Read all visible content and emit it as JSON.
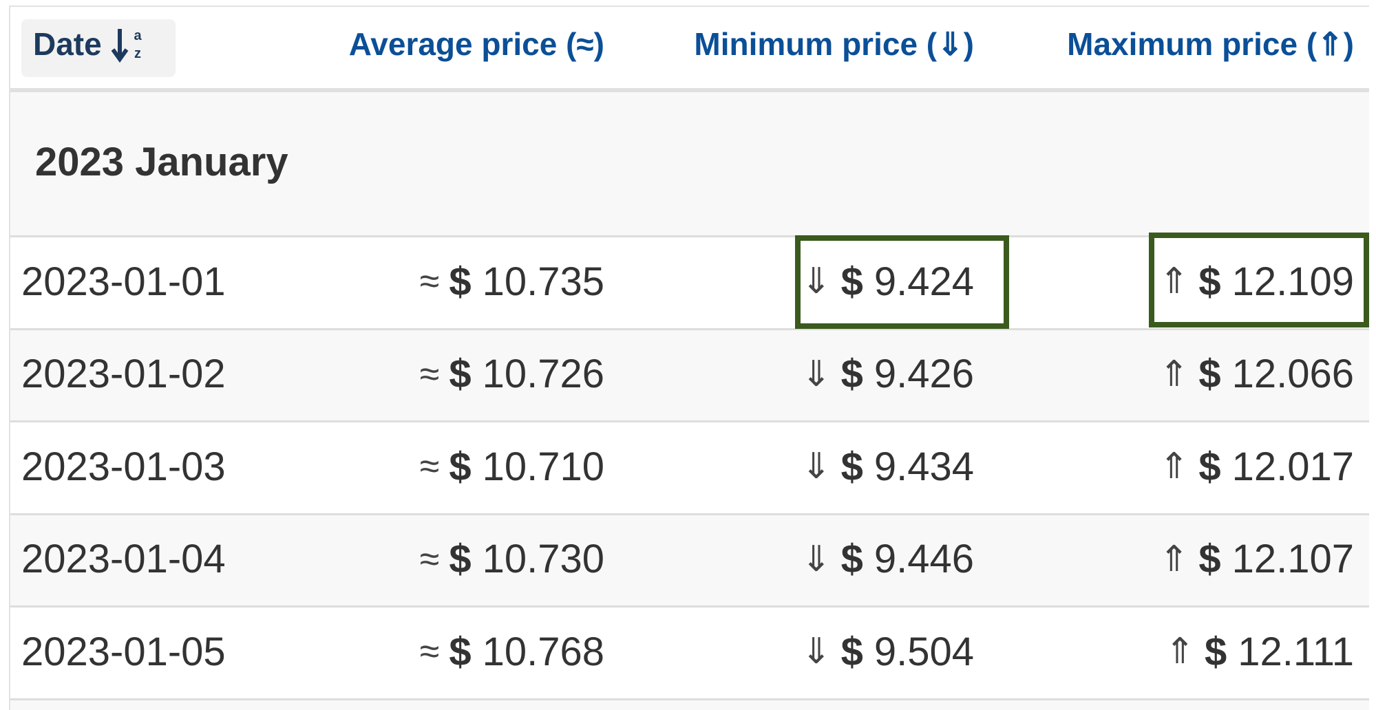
{
  "table": {
    "columns": [
      "Date",
      "Average price (≈)",
      "Minimum price (⇓)",
      "Maximum price (⇑)"
    ],
    "group": "2023 January",
    "rows": [
      [
        "2023-01-01",
        [
          "≈",
          "$",
          "10.735"
        ],
        [
          "⇓",
          "$",
          "9.424"
        ],
        [
          "⇑",
          "$",
          "12.109"
        ]
      ],
      [
        "2023-01-02",
        [
          "≈",
          "$",
          "10.726"
        ],
        [
          "⇓",
          "$",
          "9.426"
        ],
        [
          "⇑",
          "$",
          "12.066"
        ]
      ],
      [
        "2023-01-03",
        [
          "≈",
          "$",
          "10.710"
        ],
        [
          "⇓",
          "$",
          "9.434"
        ],
        [
          "⇑",
          "$",
          "12.017"
        ]
      ],
      [
        "2023-01-04",
        [
          "≈",
          "$",
          "10.730"
        ],
        [
          "⇓",
          "$",
          "9.446"
        ],
        [
          "⇑",
          "$",
          "12.107"
        ]
      ],
      [
        "2023-01-05",
        [
          "≈",
          "$",
          "10.768"
        ],
        [
          "⇓",
          "$",
          "9.504"
        ],
        [
          "⇑",
          "$",
          "12.111"
        ]
      ]
    ]
  }
}
